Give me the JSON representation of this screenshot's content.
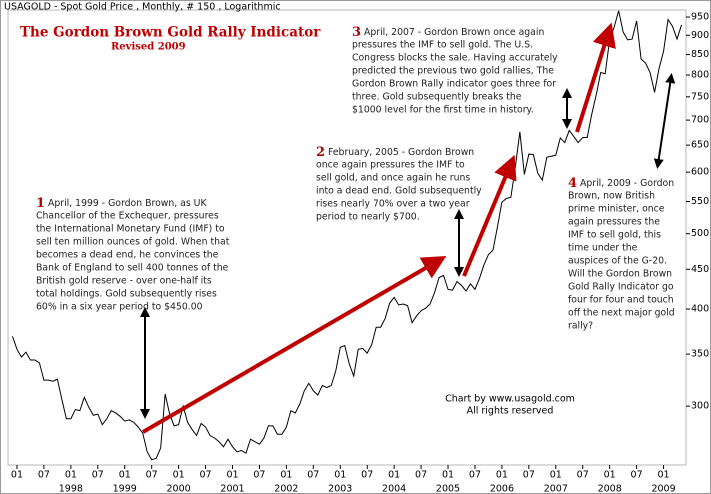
{
  "chart_data": {
    "type": "line",
    "header": "USAGOLD - Spot Gold Price , Monthly, # 150 , Logarithmic",
    "title": "The Gordon Brown Gold Rally Indicator",
    "subtitle": "Revised 2009",
    "credit": [
      "Chart by www.usagold.com",
      "All rights reserved"
    ],
    "color": "#000000",
    "log_scale": true,
    "grid": false,
    "x": [
      "1996-12",
      "1997-01",
      "1997-02",
      "1997-03",
      "1997-04",
      "1997-05",
      "1997-06",
      "1997-07",
      "1997-08",
      "1997-09",
      "1997-10",
      "1997-11",
      "1997-12",
      "1998-01",
      "1998-02",
      "1998-03",
      "1998-04",
      "1998-05",
      "1998-06",
      "1998-07",
      "1998-08",
      "1998-09",
      "1998-10",
      "1998-11",
      "1998-12",
      "1999-01",
      "1999-02",
      "1999-03",
      "1999-04",
      "1999-05",
      "1999-06",
      "1999-07",
      "1999-08",
      "1999-09",
      "1999-10",
      "1999-11",
      "1999-12",
      "2000-01",
      "2000-02",
      "2000-03",
      "2000-04",
      "2000-05",
      "2000-06",
      "2000-07",
      "2000-08",
      "2000-09",
      "2000-10",
      "2000-11",
      "2000-12",
      "2001-01",
      "2001-02",
      "2001-03",
      "2001-04",
      "2001-05",
      "2001-06",
      "2001-07",
      "2001-08",
      "2001-09",
      "2001-10",
      "2001-11",
      "2001-12",
      "2002-01",
      "2002-02",
      "2002-03",
      "2002-04",
      "2002-05",
      "2002-06",
      "2002-07",
      "2002-08",
      "2002-09",
      "2002-10",
      "2002-11",
      "2002-12",
      "2003-01",
      "2003-02",
      "2003-03",
      "2003-04",
      "2003-05",
      "2003-06",
      "2003-07",
      "2003-08",
      "2003-09",
      "2003-10",
      "2003-11",
      "2003-12",
      "2004-01",
      "2004-02",
      "2004-03",
      "2004-04",
      "2004-05",
      "2004-06",
      "2004-07",
      "2004-08",
      "2004-09",
      "2004-10",
      "2004-11",
      "2004-12",
      "2005-01",
      "2005-02",
      "2005-03",
      "2005-04",
      "2005-05",
      "2005-06",
      "2005-07",
      "2005-08",
      "2005-09",
      "2005-10",
      "2005-11",
      "2005-12",
      "2006-01",
      "2006-02",
      "2006-03",
      "2006-04",
      "2006-05",
      "2006-06",
      "2006-07",
      "2006-08",
      "2006-09",
      "2006-10",
      "2006-11",
      "2006-12",
      "2007-01",
      "2007-02",
      "2007-03",
      "2007-04",
      "2007-05",
      "2007-06",
      "2007-07",
      "2007-08",
      "2007-09",
      "2007-10",
      "2007-11",
      "2007-12",
      "2008-01",
      "2008-02",
      "2008-03",
      "2008-04",
      "2008-05",
      "2008-06",
      "2008-07",
      "2008-08",
      "2008-09",
      "2008-10",
      "2008-11",
      "2008-12",
      "2009-01",
      "2009-02",
      "2009-03",
      "2009-04",
      "2009-05"
    ],
    "values": [
      369,
      355,
      347,
      352,
      344,
      344,
      341,
      324,
      324,
      323,
      325,
      306,
      289,
      289,
      297,
      296,
      308,
      299,
      292,
      293,
      284,
      289,
      296,
      294,
      291,
      287,
      288,
      286,
      282,
      277,
      262,
      256,
      257,
      265,
      311,
      293,
      283,
      284,
      300,
      286,
      280,
      275,
      285,
      282,
      275,
      273,
      270,
      266,
      272,
      266,
      262,
      263,
      261,
      272,
      270,
      268,
      273,
      283,
      283,
      276,
      276,
      282,
      296,
      294,
      302,
      314,
      321,
      314,
      310,
      319,
      317,
      319,
      333,
      357,
      359,
      340,
      328,
      355,
      356,
      351,
      360,
      379,
      379,
      389,
      407,
      414,
      405,
      406,
      404,
      384,
      392,
      398,
      401,
      406,
      420,
      439,
      442,
      424,
      423,
      434,
      429,
      422,
      431,
      424,
      438,
      456,
      470,
      476,
      510,
      549,
      555,
      557,
      610,
      676,
      596,
      633,
      632,
      598,
      586,
      627,
      629,
      631,
      664,
      655,
      679,
      667,
      655,
      665,
      665,
      712,
      754,
      806,
      803,
      889,
      922,
      968,
      909,
      888,
      890,
      939,
      839,
      829,
      806,
      760,
      816,
      858,
      943,
      924,
      890,
      928
    ],
    "xlim": [
      "1996-11",
      "2009-06"
    ],
    "ylim": [
      252,
      970
    ],
    "yticks": [
      300,
      350,
      400,
      450,
      500,
      550,
      600,
      650,
      700,
      750,
      800,
      850,
      900,
      950
    ],
    "xticks": [
      {
        "value": "1997-01",
        "label": "01"
      },
      {
        "value": "1997-07",
        "label": "07"
      },
      {
        "value": "1998-01",
        "label": "01"
      },
      {
        "value": "1998-07",
        "label": "07"
      },
      {
        "value": "1999-01",
        "label": "01"
      },
      {
        "value": "1999-07",
        "label": "07"
      },
      {
        "value": "2000-01",
        "label": "01"
      },
      {
        "value": "2000-07",
        "label": "07"
      },
      {
        "value": "2001-01",
        "label": "01"
      },
      {
        "value": "2001-07",
        "label": "07"
      },
      {
        "value": "2002-01",
        "label": "01"
      },
      {
        "value": "2002-07",
        "label": "07"
      },
      {
        "value": "2003-01",
        "label": "01"
      },
      {
        "value": "2003-07",
        "label": "07"
      },
      {
        "value": "2004-01",
        "label": "01"
      },
      {
        "value": "2004-07",
        "label": "07"
      },
      {
        "value": "2005-01",
        "label": "01"
      },
      {
        "value": "2005-07",
        "label": "07"
      },
      {
        "value": "2006-01",
        "label": "01"
      },
      {
        "value": "2006-07",
        "label": "07"
      },
      {
        "value": "2007-01",
        "label": "01"
      },
      {
        "value": "2007-07",
        "label": "07"
      },
      {
        "value": "2008-01",
        "label": "01"
      },
      {
        "value": "2008-07",
        "label": "07"
      },
      {
        "value": "2009-01",
        "label": "01"
      }
    ],
    "year_labels": [
      {
        "value": "1998-01",
        "label": "1998"
      },
      {
        "value": "1999-01",
        "label": "1999"
      },
      {
        "value": "2000-01",
        "label": "2000"
      },
      {
        "value": "2001-01",
        "label": "2001"
      },
      {
        "value": "2002-01",
        "label": "2002"
      },
      {
        "value": "2003-01",
        "label": "2003"
      },
      {
        "value": "2004-01",
        "label": "2004"
      },
      {
        "value": "2005-01",
        "label": "2005"
      },
      {
        "value": "2006-01",
        "label": "2006"
      },
      {
        "value": "2007-01",
        "label": "2007"
      },
      {
        "value": "2008-01",
        "label": "2008"
      },
      {
        "value": "2009-01",
        "label": "2009"
      }
    ],
    "annotations": [
      {
        "number": "1",
        "lines": [
          " April, 1999 - Gordon Brown, as UK",
          "Chancellor of the Exchequer, pressures",
          "the International Monetary Fund (IMF) to",
          "sell ten million ounces of gold.  When that",
          "becomes a dead end, he convinces the",
          "Bank of England to sell 400 tonnes of the",
          "British gold reserve - over one-half its",
          "total holdings.  Gold subsequently rises",
          "60% in a six year period to $450.00"
        ]
      },
      {
        "number": "2",
        "lines": [
          " February, 2005 - Gordon Brown",
          "once again pressures the IMF to",
          "sell gold, and once again he runs",
          "into a dead end.  Gold subsequently",
          "rises nearly 70% over a two year",
          "period to nearly $700."
        ]
      },
      {
        "number": "3",
        "lines": [
          " April, 2007 - Gordon Brown once again",
          "pressures the IMF to sell gold.  The U.S.",
          "Congress blocks the sale.  Having accurately",
          "predicted the previous two gold rallies, The",
          "Gordon Brown Rally indicator goes three for",
          "three.  Gold subsequently breaks the",
          "$1000 level for the first time in history."
        ]
      },
      {
        "number": "4",
        "lines": [
          " April, 2009 - Gordon",
          "Brown, now British",
          "prime minister, once",
          "again pressures the",
          "IMF to sell gold, this",
          "time under the",
          "auspices of the G-20.",
          "Will the Gordon Brown",
          "Gold Rally Indicator go",
          "four for four and touch",
          "off the next major gold",
          "rally?"
        ]
      }
    ]
  }
}
